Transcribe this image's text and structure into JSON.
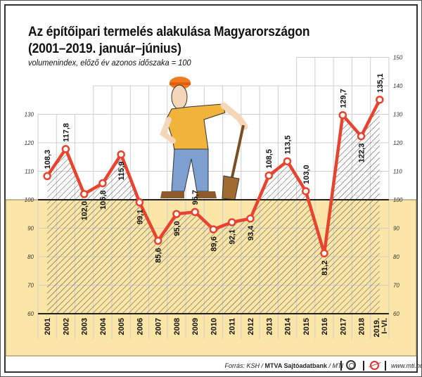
{
  "header": {
    "title_line1": "Az építőipari termelés alakulása Magyarországon",
    "title_line2": "(2001–2019. január–június)",
    "subtitle": "volumenindex, előző év azonos időszaka = 100"
  },
  "footer": {
    "source_prefix": "Forrás: KSH / ",
    "source_bold": "MTVA Sajtóadatbank",
    "source_suffix": " / MTI",
    "url": "www.mti.hu"
  },
  "colors": {
    "line": "#e8432e",
    "below_100_fill": "#fbe6a8",
    "grid": "#cfcfcf",
    "baseline": "#222222"
  },
  "chart_data": {
    "type": "line",
    "title": "Az építőipari termelés alakulása Magyarországon (2001–2019. január–június)",
    "subtitle": "volumenindex, előző év azonos időszaka = 100",
    "xlabel": "",
    "ylabel": "",
    "categories": [
      "2001",
      "2002",
      "2003",
      "2004",
      "2005",
      "2006",
      "2007",
      "2008",
      "2009",
      "2010",
      "2011",
      "2012",
      "2013",
      "2014",
      "2015",
      "2016",
      "2017",
      "2018",
      "2019. I–VI."
    ],
    "values": [
      108.3,
      117.8,
      102.0,
      105.8,
      115.9,
      99.1,
      85.6,
      95.0,
      95.7,
      89.6,
      92.1,
      93.4,
      108.5,
      113.5,
      103.0,
      81.2,
      129.7,
      122.3,
      135.1
    ],
    "labels": [
      "108,3",
      "117,8",
      "102,0",
      "105,8",
      "115,9",
      "99,1",
      "85,6",
      "95,0",
      "95,7",
      "89,6",
      "92,1",
      "93,4",
      "108,5",
      "113,5",
      "103,0",
      "81,2",
      "129,7",
      "122,3",
      "135,1"
    ],
    "yticks_left": [
      60,
      70,
      80,
      90,
      100,
      110,
      120,
      130
    ],
    "yticks_right": [
      60,
      70,
      80,
      90,
      100,
      110,
      120,
      130,
      140,
      150
    ],
    "ylim": [
      60,
      150
    ],
    "reference_line": 100,
    "grid": true,
    "legend": null
  }
}
